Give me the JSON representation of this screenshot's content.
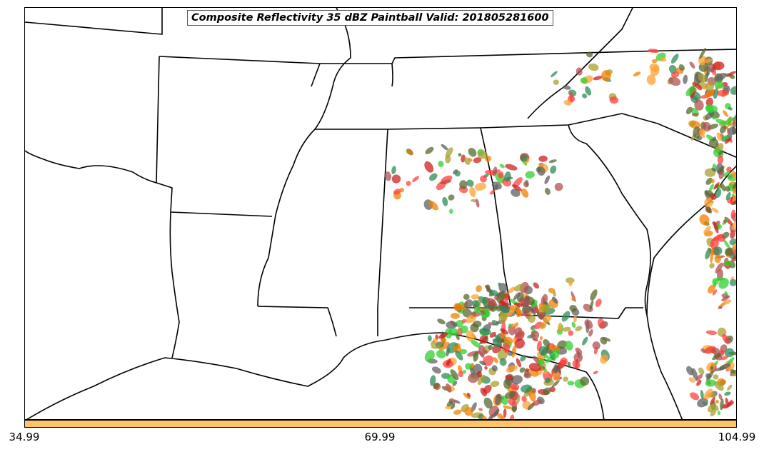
{
  "title": "Composite Reflectivity 35 dBZ Paintball Valid: 201805281600",
  "colorbar": {
    "color": "#ffc469",
    "tick_labels": [
      "34.99",
      "69.99",
      "104.99"
    ]
  },
  "paintball_colors": [
    "#ff4040",
    "#f08000",
    "#ffa030",
    "#b05050",
    "#a8a030",
    "#30d030",
    "#556b2f",
    "#606060",
    "#cc2020",
    "#2e8b57"
  ],
  "map_line_color": "#000000"
}
